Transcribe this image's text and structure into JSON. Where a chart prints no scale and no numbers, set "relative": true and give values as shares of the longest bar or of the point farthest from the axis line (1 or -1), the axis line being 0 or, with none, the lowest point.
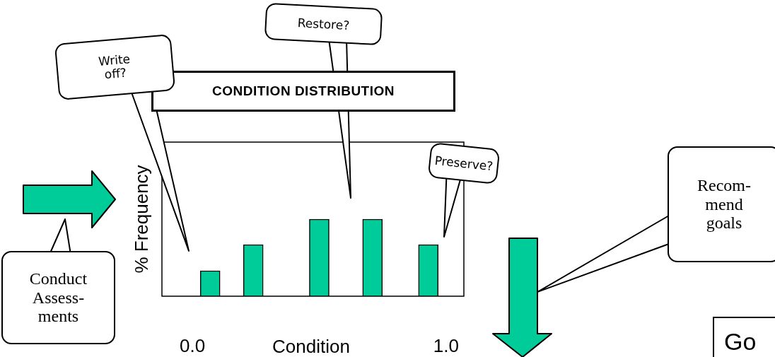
{
  "chart_data": {
    "type": "bar",
    "title": "CONDITION DISTRIBUTION",
    "xlabel": "Condition",
    "ylabel": "% Frequency",
    "x": [
      0.07,
      0.24,
      0.5,
      0.71,
      0.93
    ],
    "values": [
      0.33,
      0.67,
      1,
      1,
      0.67
    ],
    "color": "#00cc99",
    "relative": true,
    "xlim": [
      -0.12,
      1.07
    ],
    "xticks": [
      {
        "value": 0,
        "label": "0.0"
      },
      {
        "value": 1,
        "label": "1.0"
      }
    ],
    "grid": false,
    "legend": false,
    "annotations": [
      "Write\noff?",
      "Restore?",
      "Preserve?",
      "Recom-\nmend\ngoals",
      "Conduct\nAssess-\nments",
      "Go"
    ]
  }
}
